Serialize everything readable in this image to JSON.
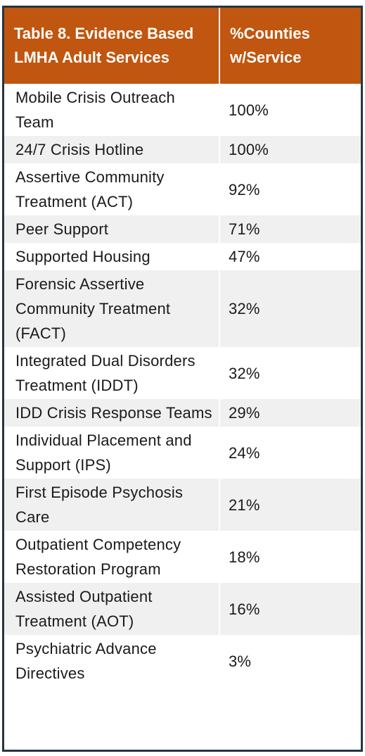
{
  "table": {
    "header": [
      "Table 8. Evidence Based LMHA Adult Services",
      "%Counties w/Service"
    ],
    "rows": [
      [
        "Mobile Crisis Outreach Team",
        "100%"
      ],
      [
        "24/7 Crisis Hotline",
        "100%"
      ],
      [
        "Assertive Community Treatment (ACT)",
        "92%"
      ],
      [
        "Peer Support",
        "71%"
      ],
      [
        "Supported Housing",
        "47%"
      ],
      [
        "Forensic Assertive Community Treatment (FACT)",
        "32%"
      ],
      [
        "Integrated Dual Disorders Treatment (IDDT)",
        "32%"
      ],
      [
        "IDD Crisis Response Teams",
        "29%"
      ],
      [
        "Individual Placement and Support (IPS)",
        "24%"
      ],
      [
        "First Episode Psychosis Care",
        "21%"
      ],
      [
        "Outpatient Competency Restoration Program",
        "18%"
      ],
      [
        "Assisted Outpatient Treatment (AOT)",
        "16%"
      ],
      [
        "Psychiatric Advance Directives",
        "3%"
      ]
    ]
  }
}
